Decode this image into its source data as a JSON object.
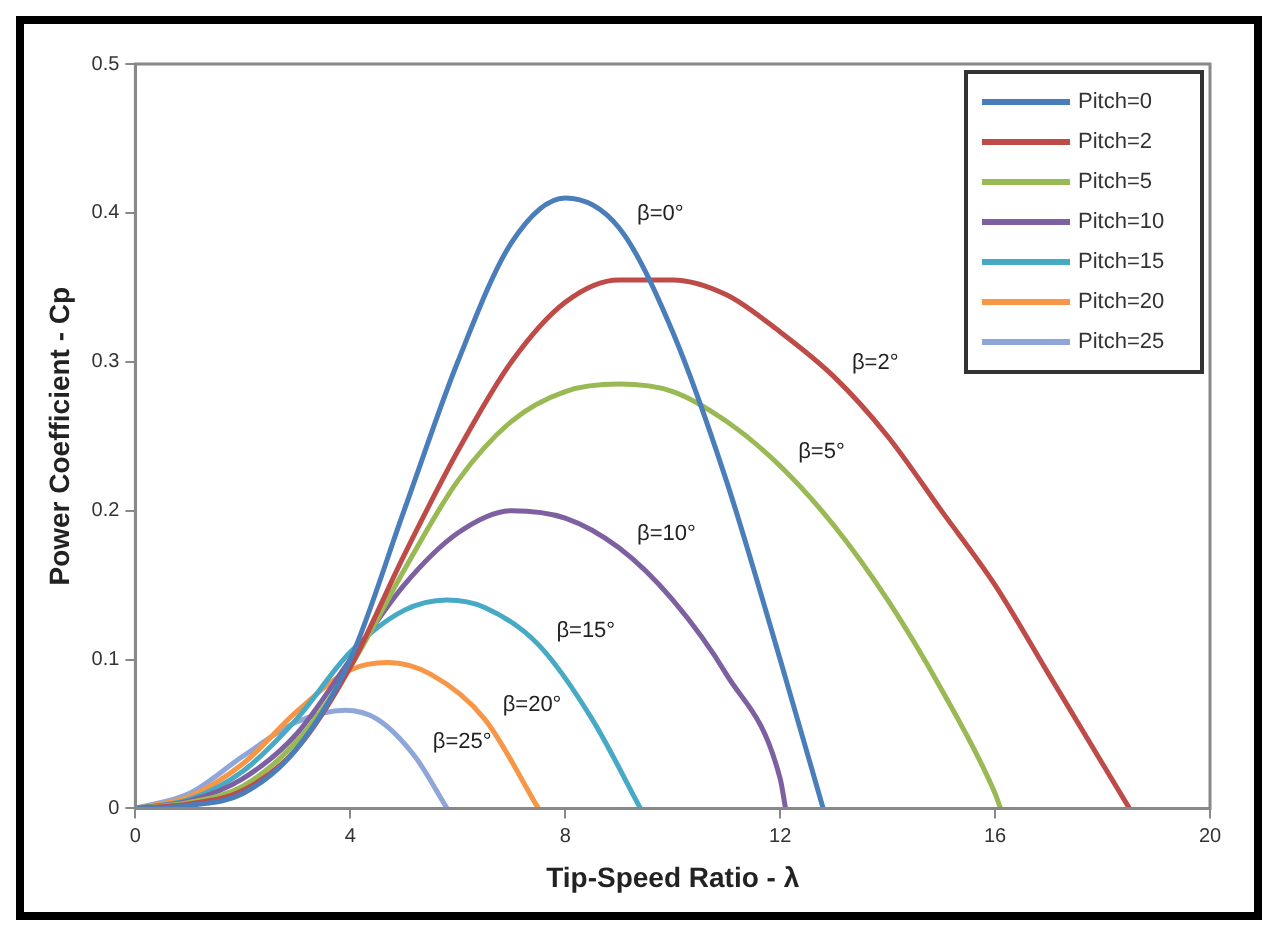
{
  "chart_data": {
    "type": "line",
    "xlabel": "Tip-Speed Ratio - λ",
    "ylabel": "Power Coefficient - Cp",
    "xlim": [
      0,
      20
    ],
    "xticks": [
      0,
      4,
      8,
      12,
      16,
      20
    ],
    "ylim": [
      0,
      0.5
    ],
    "yticks": [
      0,
      0.1,
      0.2,
      0.3,
      0.4,
      0.5
    ],
    "grid": false,
    "legend": "top right",
    "marker": "none",
    "line_style": "solid",
    "series": [
      {
        "name": "Pitch=0",
        "color": "#4a7ebb",
        "x": [
          0,
          1,
          2,
          3,
          4,
          5,
          6,
          7,
          8,
          9,
          10,
          11,
          12,
          12.8
        ],
        "values": [
          0,
          0.002,
          0.01,
          0.04,
          0.1,
          0.2,
          0.3,
          0.38,
          0.41,
          0.39,
          0.32,
          0.22,
          0.1,
          0
        ]
      },
      {
        "name": "Pitch=2",
        "color": "#be4b48",
        "x": [
          0,
          1,
          2,
          3,
          4,
          5,
          6,
          7,
          8,
          9,
          10,
          11,
          12,
          13,
          14,
          15,
          16,
          17,
          18,
          18.5
        ],
        "values": [
          0,
          0.003,
          0.012,
          0.04,
          0.095,
          0.17,
          0.24,
          0.3,
          0.34,
          0.355,
          0.355,
          0.345,
          0.32,
          0.29,
          0.25,
          0.2,
          0.15,
          0.09,
          0.03,
          0
        ]
      },
      {
        "name": "Pitch=5",
        "color": "#98b954",
        "x": [
          0,
          1,
          2,
          3,
          4,
          5,
          6,
          7,
          8,
          9,
          10,
          11,
          12,
          13,
          14,
          15,
          16,
          16.1
        ],
        "values": [
          0,
          0.004,
          0.015,
          0.045,
          0.095,
          0.16,
          0.22,
          0.26,
          0.28,
          0.285,
          0.28,
          0.26,
          0.23,
          0.19,
          0.14,
          0.08,
          0.01,
          0
        ]
      },
      {
        "name": "Pitch=10",
        "color": "#7d60a0",
        "x": [
          0,
          1,
          2,
          3,
          4,
          5,
          6,
          7,
          8,
          9,
          10,
          11,
          12,
          12.1
        ],
        "values": [
          0,
          0.005,
          0.02,
          0.05,
          0.1,
          0.15,
          0.185,
          0.2,
          0.195,
          0.175,
          0.14,
          0.09,
          0.02,
          0
        ]
      },
      {
        "name": "Pitch=15",
        "color": "#46aac5",
        "x": [
          0,
          1,
          2,
          3,
          4,
          5,
          5.8,
          6.5,
          7.5,
          8.5,
          9.4
        ],
        "values": [
          0,
          0.006,
          0.025,
          0.06,
          0.105,
          0.133,
          0.14,
          0.135,
          0.11,
          0.06,
          0
        ]
      },
      {
        "name": "Pitch=20",
        "color": "#f79646",
        "x": [
          0,
          1,
          2,
          3,
          4,
          4.7,
          5.5,
          6.5,
          7.5
        ],
        "values": [
          0,
          0.008,
          0.03,
          0.065,
          0.093,
          0.098,
          0.09,
          0.06,
          0
        ]
      },
      {
        "name": "Pitch=25",
        "color": "#8ea6d8",
        "x": [
          0,
          1,
          2,
          3,
          3.9,
          4.5,
          5.2,
          5.8
        ],
        "values": [
          0,
          0.01,
          0.035,
          0.058,
          0.066,
          0.06,
          0.035,
          0
        ]
      }
    ],
    "annotations": [
      {
        "text": "β=0°",
        "x": 9,
        "y": 0.39
      },
      {
        "text": "β=2°",
        "x": 13,
        "y": 0.29
      },
      {
        "text": "β=5°",
        "x": 12,
        "y": 0.23
      },
      {
        "text": "β=10°",
        "x": 9,
        "y": 0.175
      },
      {
        "text": "β=15°",
        "x": 7.5,
        "y": 0.11
      },
      {
        "text": "β=20°",
        "x": 6.5,
        "y": 0.06
      },
      {
        "text": "β=25°",
        "x": 5.2,
        "y": 0.035
      }
    ]
  }
}
